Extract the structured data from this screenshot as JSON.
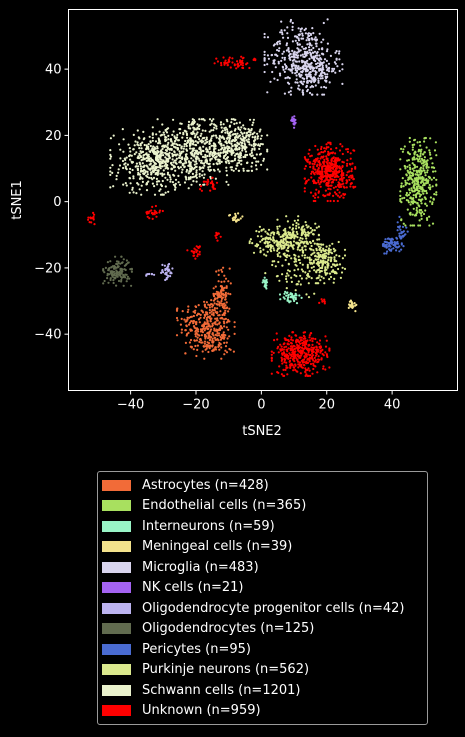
{
  "chart_data": {
    "type": "scatter",
    "xlabel": "tSNE2",
    "ylabel": "tSNE1",
    "xlim": [
      -59,
      60
    ],
    "ylim": [
      -57,
      58
    ],
    "xticks": [
      -40,
      -20,
      0,
      20,
      40
    ],
    "yticks": [
      -40,
      -20,
      0,
      20,
      40
    ],
    "grid": false,
    "legend_position": "below",
    "background": "#000000",
    "series": [
      {
        "name": "Astrocytes (n=428)",
        "color": "#f26b38",
        "clusters": [
          {
            "cx": -17,
            "cy": -37,
            "sx": 4,
            "sy": 4,
            "n": 260
          },
          {
            "cx": -12,
            "cy": -28,
            "sx": 1.2,
            "sy": 4,
            "n": 90
          },
          {
            "cx": -15,
            "cy": -43,
            "sx": 3,
            "sy": 2,
            "n": 78
          }
        ]
      },
      {
        "name": "Endothelial cells (n=365)",
        "color": "#a8e05f",
        "clusters": [
          {
            "cx": 48,
            "cy": 6,
            "sx": 2.5,
            "sy": 6,
            "n": 365
          }
        ]
      },
      {
        "name": "Interneurons (n=59)",
        "color": "#99f5c7",
        "clusters": [
          {
            "cx": 9,
            "cy": -29,
            "sx": 1.5,
            "sy": 1,
            "n": 40
          },
          {
            "cx": 1,
            "cy": -24,
            "sx": 0.6,
            "sy": 1,
            "n": 19
          }
        ]
      },
      {
        "name": "Meningeal cells (n=39)",
        "color": "#f3e28c",
        "clusters": [
          {
            "cx": -8,
            "cy": -5,
            "sx": 1,
            "sy": 0.8,
            "n": 20
          },
          {
            "cx": 28,
            "cy": -31,
            "sx": 0.6,
            "sy": 1,
            "n": 19
          }
        ]
      },
      {
        "name": "Microglia (n=483)",
        "color": "#d9d5ee",
        "clusters": [
          {
            "cx": 12,
            "cy": 44,
            "sx": 5,
            "sy": 5,
            "n": 300
          },
          {
            "cx": 16,
            "cy": 40,
            "sx": 4,
            "sy": 3.5,
            "n": 183
          }
        ]
      },
      {
        "name": "NK cells (n=21)",
        "color": "#a463f2",
        "clusters": [
          {
            "cx": 10,
            "cy": 24,
            "sx": 0.4,
            "sy": 0.8,
            "n": 21
          }
        ]
      },
      {
        "name": "Oligodendrocyte progenitor cells (n=42)",
        "color": "#bcb3f0",
        "clusters": [
          {
            "cx": -29,
            "cy": -21,
            "sx": 1,
            "sy": 1.2,
            "n": 35
          },
          {
            "cx": -34,
            "cy": -22,
            "sx": 0.8,
            "sy": 0.4,
            "n": 7
          }
        ]
      },
      {
        "name": "Oligodendrocytes (n=125)",
        "color": "#616b4f",
        "clusters": [
          {
            "cx": -44,
            "cy": -21,
            "sx": 2,
            "sy": 2,
            "n": 125
          }
        ]
      },
      {
        "name": "Pericytes (n=95)",
        "color": "#4a6bd1",
        "clusters": [
          {
            "cx": 40,
            "cy": -13,
            "sx": 1.5,
            "sy": 1.2,
            "n": 70
          },
          {
            "cx": 43,
            "cy": -9,
            "sx": 0.8,
            "sy": 2,
            "n": 25
          }
        ]
      },
      {
        "name": "Purkinje neurons (n=562)",
        "color": "#dbe98d",
        "clusters": [
          {
            "cx": 3,
            "cy": -12,
            "sx": 3,
            "sy": 2,
            "n": 120
          },
          {
            "cx": 11,
            "cy": -11,
            "sx": 3,
            "sy": 3,
            "n": 180
          },
          {
            "cx": 19,
            "cy": -18,
            "sx": 3,
            "sy": 3,
            "n": 200
          },
          {
            "cx": 10,
            "cy": -20,
            "sx": 4,
            "sy": 4,
            "n": 62
          }
        ]
      },
      {
        "name": "Schwann cells (n=1201)",
        "color": "#eaf2cd",
        "clusters": [
          {
            "cx": -33,
            "cy": 12,
            "sx": 6,
            "sy": 4.5,
            "n": 450
          },
          {
            "cx": -20,
            "cy": 15,
            "sx": 6,
            "sy": 4.5,
            "n": 450
          },
          {
            "cx": -7,
            "cy": 17,
            "sx": 4,
            "sy": 3.5,
            "n": 301
          }
        ]
      },
      {
        "name": "Unknown (n=959)",
        "color": "#ff0000",
        "clusters": [
          {
            "cx": 21,
            "cy": 9,
            "sx": 3.5,
            "sy": 4,
            "n": 420
          },
          {
            "cx": 12,
            "cy": -46,
            "sx": 4,
            "sy": 3,
            "n": 380
          },
          {
            "cx": -11,
            "cy": 42,
            "sx": 1.5,
            "sy": 0.8,
            "n": 25
          },
          {
            "cx": -6,
            "cy": 42,
            "sx": 1.3,
            "sy": 0.8,
            "n": 25
          },
          {
            "cx": -16,
            "cy": 5,
            "sx": 1.4,
            "sy": 1,
            "n": 25
          },
          {
            "cx": -33,
            "cy": -3,
            "sx": 1.3,
            "sy": 1,
            "n": 25
          },
          {
            "cx": -52,
            "cy": -5,
            "sx": 0.6,
            "sy": 0.8,
            "n": 15
          },
          {
            "cx": -20,
            "cy": -15,
            "sx": 1.2,
            "sy": 1,
            "n": 22
          },
          {
            "cx": -13,
            "cy": -10,
            "sx": 0.5,
            "sy": 0.8,
            "n": 10
          },
          {
            "cx": 19,
            "cy": -30,
            "sx": 0.6,
            "sy": 0.4,
            "n": 8
          },
          {
            "cx": -2,
            "cy": 43,
            "sx": 0.3,
            "sy": 0.3,
            "n": 4
          }
        ]
      }
    ]
  }
}
